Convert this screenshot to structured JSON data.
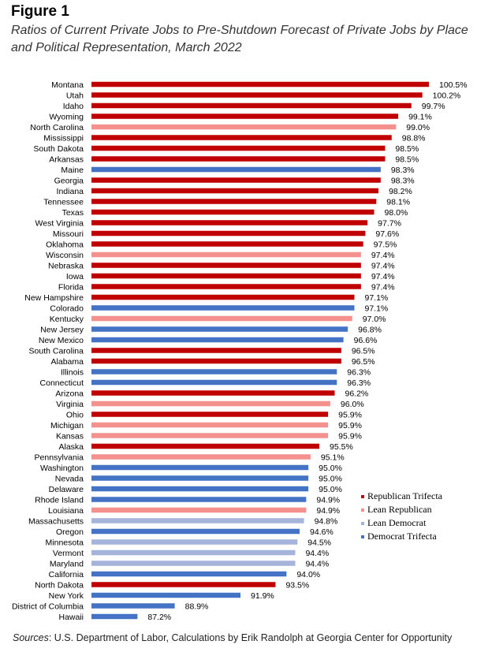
{
  "figure_label": "Figure 1",
  "title": "Ratios of Current Private Jobs to Pre-Shutdown Forecast of Private Jobs by Place and Political Representation, March 2022",
  "source_label": "Sources",
  "source_text": ": U.S. Department of Labor, Calculations by Erik Randolph at Georgia Center for Opportunity",
  "chart_data": {
    "type": "bar",
    "orientation": "horizontal",
    "grid": false,
    "legend_position": "right",
    "legend": [
      {
        "name": "Republican Trifecta",
        "color": "#c00000"
      },
      {
        "name": "Lean Republican",
        "color": "#f4908e"
      },
      {
        "name": "Lean Democrat",
        "color": "#a6b4dc"
      },
      {
        "name": "Democrat Trifecta",
        "color": "#4472c4"
      }
    ],
    "data": [
      {
        "state": "Montana",
        "value": 100.5,
        "label": "100.5%",
        "group": 0
      },
      {
        "state": "Utah",
        "value": 100.2,
        "label": "100.2%",
        "group": 0
      },
      {
        "state": "Idaho",
        "value": 99.7,
        "label": "99.7%",
        "group": 0
      },
      {
        "state": "Wyoming",
        "value": 99.1,
        "label": "99.1%",
        "group": 0
      },
      {
        "state": "North Carolina",
        "value": 99.0,
        "label": "99.0%",
        "group": 1
      },
      {
        "state": "Mississippi",
        "value": 98.8,
        "label": "98.8%",
        "group": 0
      },
      {
        "state": "South Dakota",
        "value": 98.5,
        "label": "98.5%",
        "group": 0
      },
      {
        "state": "Arkansas",
        "value": 98.5,
        "label": "98.5%",
        "group": 0
      },
      {
        "state": "Maine",
        "value": 98.3,
        "label": "98.3%",
        "group": 3
      },
      {
        "state": "Georgia",
        "value": 98.3,
        "label": "98.3%",
        "group": 0
      },
      {
        "state": "Indiana",
        "value": 98.2,
        "label": "98.2%",
        "group": 0
      },
      {
        "state": "Tennessee",
        "value": 98.1,
        "label": "98.1%",
        "group": 0
      },
      {
        "state": "Texas",
        "value": 98.0,
        "label": "98.0%",
        "group": 0
      },
      {
        "state": "West Virginia",
        "value": 97.7,
        "label": "97.7%",
        "group": 0
      },
      {
        "state": "Missouri",
        "value": 97.6,
        "label": "97.6%",
        "group": 0
      },
      {
        "state": "Oklahoma",
        "value": 97.5,
        "label": "97.5%",
        "group": 0
      },
      {
        "state": "Wisconsin",
        "value": 97.4,
        "label": "97.4%",
        "group": 1
      },
      {
        "state": "Nebraska",
        "value": 97.4,
        "label": "97.4%",
        "group": 0
      },
      {
        "state": "Iowa",
        "value": 97.4,
        "label": "97.4%",
        "group": 0
      },
      {
        "state": "Florida",
        "value": 97.4,
        "label": "97.4%",
        "group": 0
      },
      {
        "state": "New Hampshire",
        "value": 97.1,
        "label": "97.1%",
        "group": 0
      },
      {
        "state": "Colorado",
        "value": 97.1,
        "label": "97.1%",
        "group": 3
      },
      {
        "state": "Kentucky",
        "value": 97.0,
        "label": "97.0%",
        "group": 1
      },
      {
        "state": "New Jersey",
        "value": 96.8,
        "label": "96.8%",
        "group": 3
      },
      {
        "state": "New Mexico",
        "value": 96.6,
        "label": "96.6%",
        "group": 3
      },
      {
        "state": "South Carolina",
        "value": 96.5,
        "label": "96.5%",
        "group": 0
      },
      {
        "state": "Alabama",
        "value": 96.5,
        "label": "96.5%",
        "group": 0
      },
      {
        "state": "Illinois",
        "value": 96.3,
        "label": "96.3%",
        "group": 3
      },
      {
        "state": "Connecticut",
        "value": 96.3,
        "label": "96.3%",
        "group": 3
      },
      {
        "state": "Arizona",
        "value": 96.2,
        "label": "96.2%",
        "group": 0
      },
      {
        "state": "Virginia",
        "value": 96.0,
        "label": "96.0%",
        "group": 1
      },
      {
        "state": "Ohio",
        "value": 95.9,
        "label": "95.9%",
        "group": 0
      },
      {
        "state": "Michigan",
        "value": 95.9,
        "label": "95.9%",
        "group": 1
      },
      {
        "state": "Kansas",
        "value": 95.9,
        "label": "95.9%",
        "group": 1
      },
      {
        "state": "Alaska",
        "value": 95.5,
        "label": "95.5%",
        "group": 0
      },
      {
        "state": "Pennsylvania",
        "value": 95.1,
        "label": "95.1%",
        "group": 1
      },
      {
        "state": "Washington",
        "value": 95.0,
        "label": "95.0%",
        "group": 3
      },
      {
        "state": "Nevada",
        "value": 95.0,
        "label": "95.0%",
        "group": 3
      },
      {
        "state": "Delaware",
        "value": 95.0,
        "label": "95.0%",
        "group": 3
      },
      {
        "state": "Rhode Island",
        "value": 94.9,
        "label": "94.9%",
        "group": 3
      },
      {
        "state": "Louisiana",
        "value": 94.9,
        "label": "94.9%",
        "group": 1
      },
      {
        "state": "Massachusetts",
        "value": 94.8,
        "label": "94.8%",
        "group": 2
      },
      {
        "state": "Oregon",
        "value": 94.6,
        "label": "94.6%",
        "group": 3
      },
      {
        "state": "Minnesota",
        "value": 94.5,
        "label": "94.5%",
        "group": 2
      },
      {
        "state": "Vermont",
        "value": 94.4,
        "label": "94.4%",
        "group": 2
      },
      {
        "state": "Maryland",
        "value": 94.4,
        "label": "94.4%",
        "group": 2
      },
      {
        "state": "California",
        "value": 94.0,
        "label": "94.0%",
        "group": 3
      },
      {
        "state": "North Dakota",
        "value": 93.5,
        "label": "93.5%",
        "group": 0
      },
      {
        "state": "New York",
        "value": 91.9,
        "label": "91.9%",
        "group": 3
      },
      {
        "state": "District of Columbia",
        "value": 88.9,
        "label": "88.9%",
        "group": 3
      },
      {
        "state": "Hawaii",
        "value": 87.2,
        "label": "87.2%",
        "group": 3
      }
    ],
    "xlim": [
      85.1,
      100.5
    ]
  }
}
